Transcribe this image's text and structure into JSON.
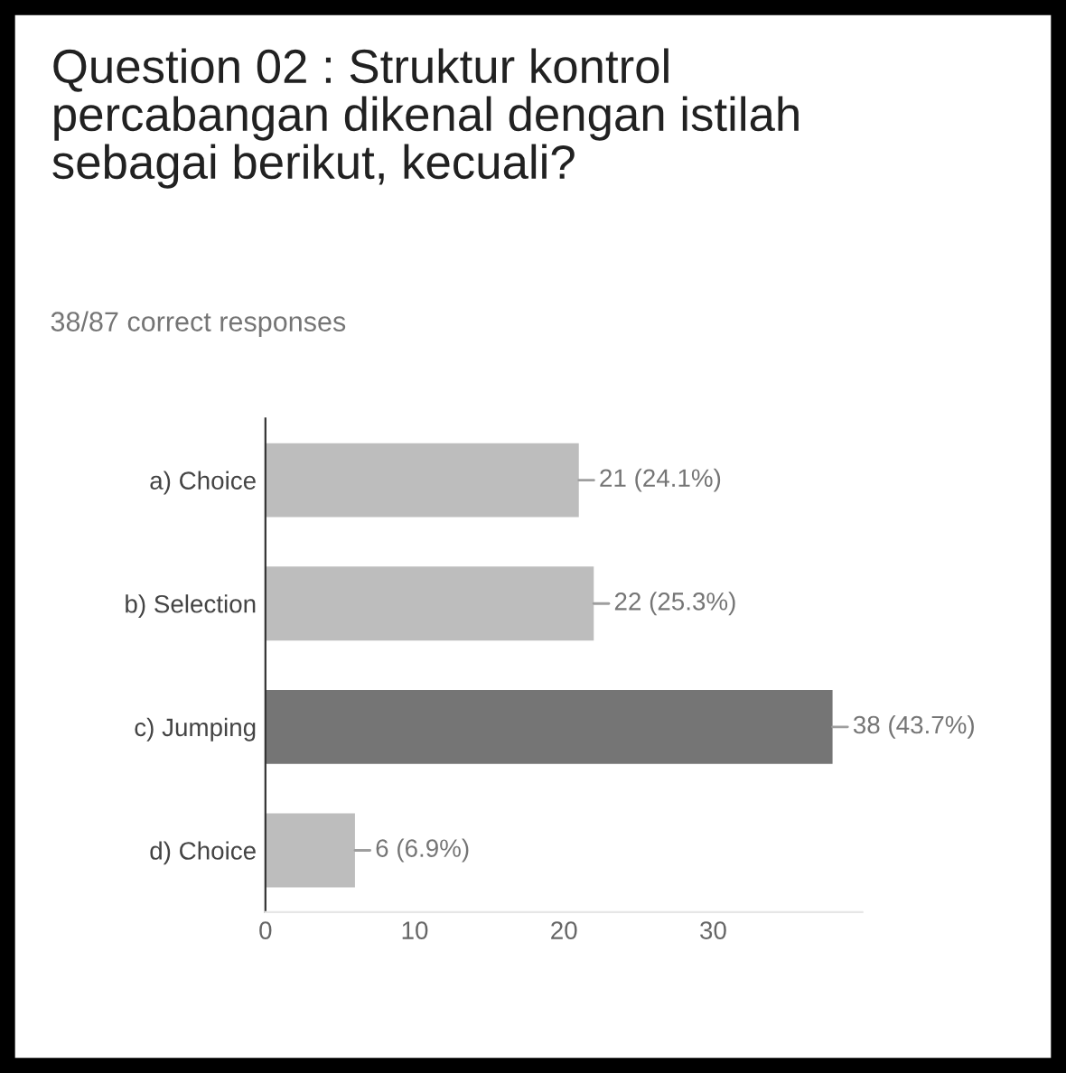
{
  "chart_data": {
    "type": "bar",
    "orientation": "horizontal",
    "title": "Question 02 : Struktur kontrol percabangan dikenal dengan istilah sebagai berikut, kecuali?",
    "subtitle": "38/87 correct responses",
    "categories": [
      "a) Choice",
      "b) Selection",
      "c) Jumping",
      "d) Choice"
    ],
    "values": [
      21,
      22,
      38,
      6
    ],
    "colors": [
      "#bdbdbd",
      "#bdbdbd",
      "#757575",
      "#bdbdbd"
    ],
    "value_labels": [
      "21 (24.1%)",
      "22 (25.3%)",
      "38 (43.7%)",
      "6 (6.9%)"
    ],
    "xlim": [
      0,
      40
    ],
    "xticks": [
      0,
      10,
      20,
      30
    ],
    "grid": false,
    "legend": false
  }
}
